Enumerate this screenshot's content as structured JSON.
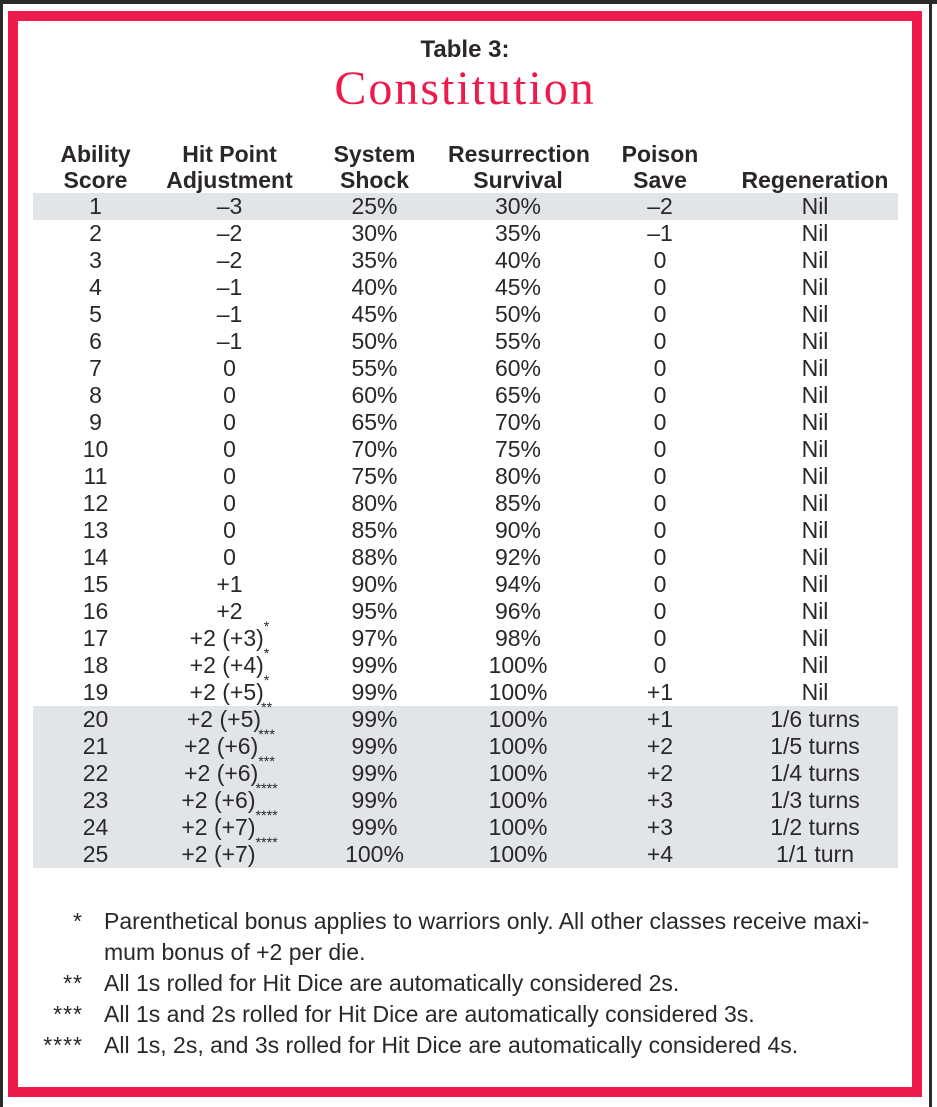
{
  "title": {
    "kicker": "Table 3:",
    "heading": "Constitution"
  },
  "colors": {
    "accent_red": "#ed1b4b",
    "row_shade": "#e1e5e8",
    "text": "#2b2728"
  },
  "table": {
    "columns": [
      {
        "line1": "Ability",
        "line2": "Score"
      },
      {
        "line1": "Hit Point",
        "line2": "Adjustment"
      },
      {
        "line1": "System",
        "line2": "Shock"
      },
      {
        "line1": "Resurrection",
        "line2": "Survival"
      },
      {
        "line1": "Poison",
        "line2": "Save"
      },
      {
        "line1": "",
        "line2": "Regeneration"
      }
    ],
    "rows": [
      {
        "score": "1",
        "hp_adjustment": "–3",
        "system_shock": "25%",
        "resurrection_survival": "30%",
        "poison_save": "–2",
        "regeneration": "Nil",
        "shaded": true
      },
      {
        "score": "2",
        "hp_adjustment": "–2",
        "system_shock": "30%",
        "resurrection_survival": "35%",
        "poison_save": "–1",
        "regeneration": "Nil",
        "shaded": false
      },
      {
        "score": "3",
        "hp_adjustment": "–2",
        "system_shock": "35%",
        "resurrection_survival": "40%",
        "poison_save": "0",
        "regeneration": "Nil",
        "shaded": false
      },
      {
        "score": "4",
        "hp_adjustment": "–1",
        "system_shock": "40%",
        "resurrection_survival": "45%",
        "poison_save": "0",
        "regeneration": "Nil",
        "shaded": false
      },
      {
        "score": "5",
        "hp_adjustment": "–1",
        "system_shock": "45%",
        "resurrection_survival": "50%",
        "poison_save": "0",
        "regeneration": "Nil",
        "shaded": false
      },
      {
        "score": "6",
        "hp_adjustment": "–1",
        "system_shock": "50%",
        "resurrection_survival": "55%",
        "poison_save": "0",
        "regeneration": "Nil",
        "shaded": false
      },
      {
        "score": "7",
        "hp_adjustment": "0",
        "system_shock": "55%",
        "resurrection_survival": "60%",
        "poison_save": "0",
        "regeneration": "Nil",
        "shaded": false
      },
      {
        "score": "8",
        "hp_adjustment": "0",
        "system_shock": "60%",
        "resurrection_survival": "65%",
        "poison_save": "0",
        "regeneration": "Nil",
        "shaded": false
      },
      {
        "score": "9",
        "hp_adjustment": "0",
        "system_shock": "65%",
        "resurrection_survival": "70%",
        "poison_save": "0",
        "regeneration": "Nil",
        "shaded": false
      },
      {
        "score": "10",
        "hp_adjustment": "0",
        "system_shock": "70%",
        "resurrection_survival": "75%",
        "poison_save": "0",
        "regeneration": "Nil",
        "shaded": false
      },
      {
        "score": "11",
        "hp_adjustment": "0",
        "system_shock": "75%",
        "resurrection_survival": "80%",
        "poison_save": "0",
        "regeneration": "Nil",
        "shaded": false
      },
      {
        "score": "12",
        "hp_adjustment": "0",
        "system_shock": "80%",
        "resurrection_survival": "85%",
        "poison_save": "0",
        "regeneration": "Nil",
        "shaded": false
      },
      {
        "score": "13",
        "hp_adjustment": "0",
        "system_shock": "85%",
        "resurrection_survival": "90%",
        "poison_save": "0",
        "regeneration": "Nil",
        "shaded": false
      },
      {
        "score": "14",
        "hp_adjustment": "0",
        "system_shock": "88%",
        "resurrection_survival": "92%",
        "poison_save": "0",
        "regeneration": "Nil",
        "shaded": false
      },
      {
        "score": "15",
        "hp_adjustment": "+1",
        "system_shock": "90%",
        "resurrection_survival": "94%",
        "poison_save": "0",
        "regeneration": "Nil",
        "shaded": false
      },
      {
        "score": "16",
        "hp_adjustment": "+2",
        "system_shock": "95%",
        "resurrection_survival": "96%",
        "poison_save": "0",
        "regeneration": "Nil",
        "shaded": false
      },
      {
        "score": "17",
        "hp_adjustment": "+2 (+3)*",
        "system_shock": "97%",
        "resurrection_survival": "98%",
        "poison_save": "0",
        "regeneration": "Nil",
        "shaded": false
      },
      {
        "score": "18",
        "hp_adjustment": "+2 (+4)*",
        "system_shock": "99%",
        "resurrection_survival": "100%",
        "poison_save": "0",
        "regeneration": "Nil",
        "shaded": false
      },
      {
        "score": "19",
        "hp_adjustment": "+2 (+5)*",
        "system_shock": "99%",
        "resurrection_survival": "100%",
        "poison_save": "+1",
        "regeneration": "Nil",
        "shaded": false
      },
      {
        "score": "20",
        "hp_adjustment": "+2 (+5)**",
        "system_shock": "99%",
        "resurrection_survival": "100%",
        "poison_save": "+1",
        "regeneration": "1/6 turns",
        "shaded": true
      },
      {
        "score": "21",
        "hp_adjustment": "+2 (+6)***",
        "system_shock": "99%",
        "resurrection_survival": "100%",
        "poison_save": "+2",
        "regeneration": "1/5 turns",
        "shaded": true
      },
      {
        "score": "22",
        "hp_adjustment": "+2 (+6)***",
        "system_shock": "99%",
        "resurrection_survival": "100%",
        "poison_save": "+2",
        "regeneration": "1/4 turns",
        "shaded": true
      },
      {
        "score": "23",
        "hp_adjustment": "+2 (+6)****",
        "system_shock": "99%",
        "resurrection_survival": "100%",
        "poison_save": "+3",
        "regeneration": "1/3 turns",
        "shaded": true
      },
      {
        "score": "24",
        "hp_adjustment": "+2 (+7)****",
        "system_shock": "99%",
        "resurrection_survival": "100%",
        "poison_save": "+3",
        "regeneration": "1/2 turns",
        "shaded": true
      },
      {
        "score": "25",
        "hp_adjustment": "+2 (+7)****",
        "system_shock": "100%",
        "resurrection_survival": "100%",
        "poison_save": "+4",
        "regeneration": "1/1 turn",
        "shaded": true
      }
    ]
  },
  "footnotes": [
    {
      "marker": "*",
      "lines": [
        "Parenthetical bonus applies to warriors only. All other classes receive maxi-",
        "mum bonus of +2 per die."
      ]
    },
    {
      "marker": "**",
      "lines": [
        "All 1s rolled for Hit Dice are automatically considered 2s."
      ]
    },
    {
      "marker": "***",
      "lines": [
        "All 1s and 2s rolled for Hit Dice are automatically considered 3s."
      ]
    },
    {
      "marker": "****",
      "lines": [
        "All 1s, 2s, and 3s rolled for Hit Dice are automatically considered 4s."
      ]
    }
  ]
}
